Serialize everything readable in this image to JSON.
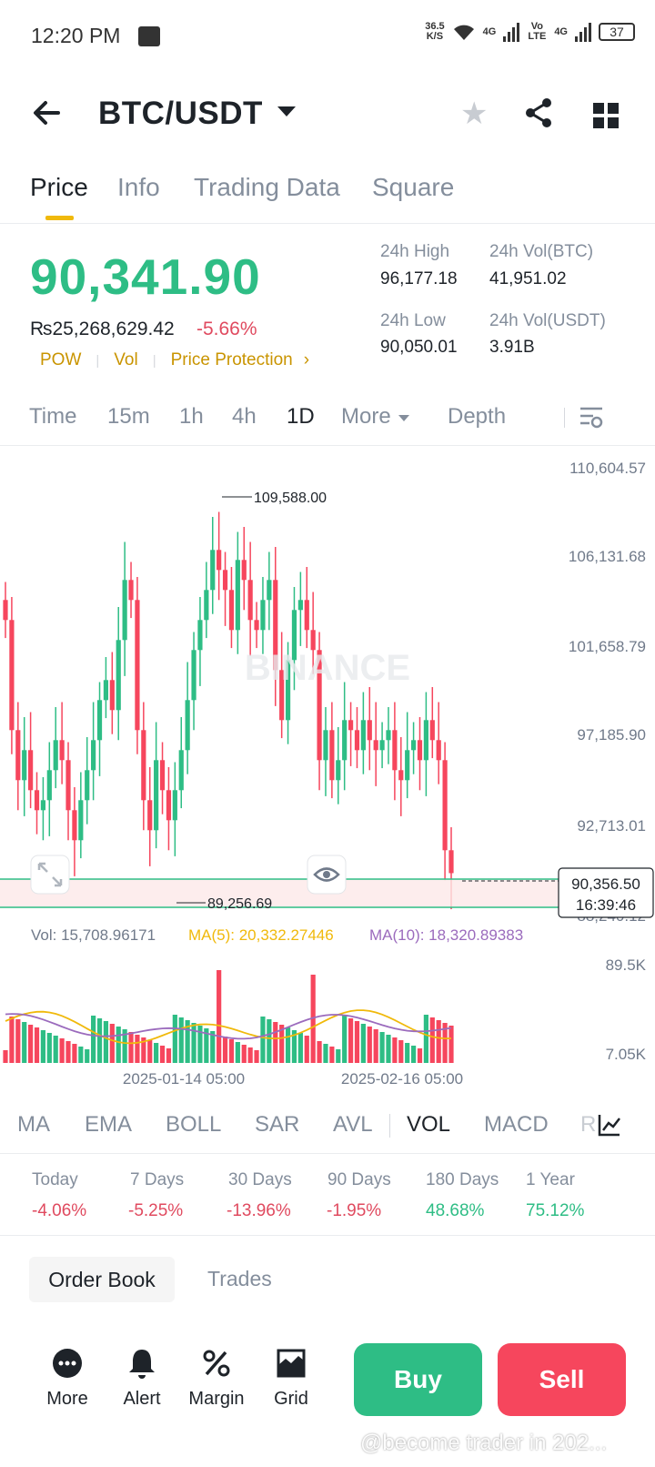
{
  "status_bar": {
    "time": "12:20 PM",
    "net_speed_top": "36.5",
    "net_speed_bottom": "K/S",
    "net1": "4G",
    "volte": "Vo LTE",
    "net2": "4G",
    "battery": "37"
  },
  "header": {
    "pair": "BTC/USDT"
  },
  "tabs": [
    {
      "label": "Price"
    },
    {
      "label": "Info"
    },
    {
      "label": "Trading Data"
    },
    {
      "label": "Square"
    }
  ],
  "ticker": {
    "last_price": "90,341.90",
    "local_price": "₨25,268,629.42",
    "change_pct": "-5.66%",
    "tags": [
      "POW",
      "Vol",
      "Price Protection"
    ],
    "high_label": "24h High",
    "high_value": "96,177.18",
    "vol_btc_label": "24h Vol(BTC)",
    "vol_btc_value": "41,951.02",
    "low_label": "24h Low",
    "low_value": "90,050.01",
    "vol_usdt_label": "24h Vol(USDT)",
    "vol_usdt_value": "3.91B"
  },
  "intervals": [
    "Time",
    "15m",
    "1h",
    "4h",
    "1D",
    "More",
    "Depth"
  ],
  "active_interval": "1D",
  "chart_data": {
    "type": "candlestick",
    "price_axis_ticks": [
      "110,604.57",
      "106,131.68",
      "101,658.79",
      "97,185.90",
      "92,713.01",
      "88,240.12"
    ],
    "max_marker": "109,588.00",
    "min_marker": "89,256.69",
    "current_price_tag": "90,356.50",
    "countdown": "16:39:46",
    "watermark": "BINANCE",
    "volume_legend": {
      "vol": "Vol: 15,708.96171",
      "ma5": "MA(5): 20,332.27446",
      "ma10": "MA(10): 18,320.89383"
    },
    "volume_axis_ticks": [
      "89.5K",
      "7.05K"
    ],
    "x_labels": [
      "2025-01-14 05:00",
      "2025-02-16 05:00"
    ],
    "up_color": "#2ebd85",
    "down_color": "#f6465d",
    "ma5_color": "#f0b90b",
    "ma10_color": "#9b6bbd"
  },
  "indicators": [
    "MA",
    "EMA",
    "BOLL",
    "SAR",
    "AVL",
    "VOL",
    "MACD",
    "R"
  ],
  "active_indicator": "VOL",
  "performance": [
    {
      "label": "Today",
      "value": "-4.06%"
    },
    {
      "label": "7 Days",
      "value": "-5.25%"
    },
    {
      "label": "30 Days",
      "value": "-13.96%"
    },
    {
      "label": "90 Days",
      "value": "-1.95%"
    },
    {
      "label": "180 Days",
      "value": "48.68%"
    },
    {
      "label": "1 Year",
      "value": "75.12%"
    }
  ],
  "book": {
    "order_book": "Order Book",
    "trades": "Trades"
  },
  "bottom": {
    "more": "More",
    "alert": "Alert",
    "margin": "Margin",
    "grid": "Grid",
    "buy": "Buy",
    "sell": "Sell"
  },
  "overlay_text": "@become trader in 202..."
}
